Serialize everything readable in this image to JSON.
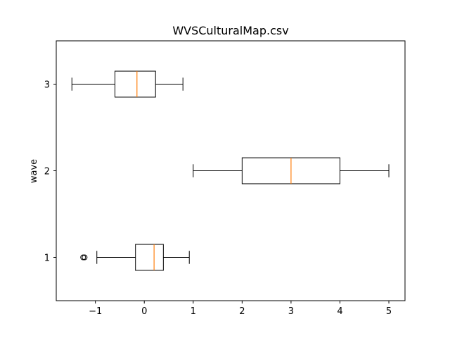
{
  "chart_data": {
    "type": "boxplot",
    "orientation": "horizontal",
    "title": "WVSCulturalMap.csv",
    "xlabel": "",
    "ylabel": "wave",
    "xlim": [
      -1.8,
      5.33
    ],
    "ylim": [
      0.5,
      3.5
    ],
    "x_ticks": [
      -1,
      0,
      1,
      2,
      3,
      4,
      5
    ],
    "x_tick_labels": [
      "−1",
      "0",
      "1",
      "2",
      "3",
      "4",
      "5"
    ],
    "categories": [
      "1",
      "2",
      "3"
    ],
    "grid": false,
    "legend": "none",
    "colors": {
      "box": "#000000",
      "median": "#ff7f0e"
    },
    "boxes": [
      {
        "category": "1",
        "whisker_low": -0.97,
        "q1": -0.18,
        "median": 0.2,
        "q3": 0.39,
        "whisker_high": 0.92,
        "outliers": [
          -1.25,
          -1.22
        ]
      },
      {
        "category": "2",
        "whisker_low": 1.0,
        "q1": 2.0,
        "median": 3.0,
        "q3": 4.0,
        "whisker_high": 5.0,
        "outliers": []
      },
      {
        "category": "3",
        "whisker_low": -1.48,
        "q1": -0.6,
        "median": -0.15,
        "q3": 0.23,
        "whisker_high": 0.79,
        "outliers": []
      }
    ]
  }
}
